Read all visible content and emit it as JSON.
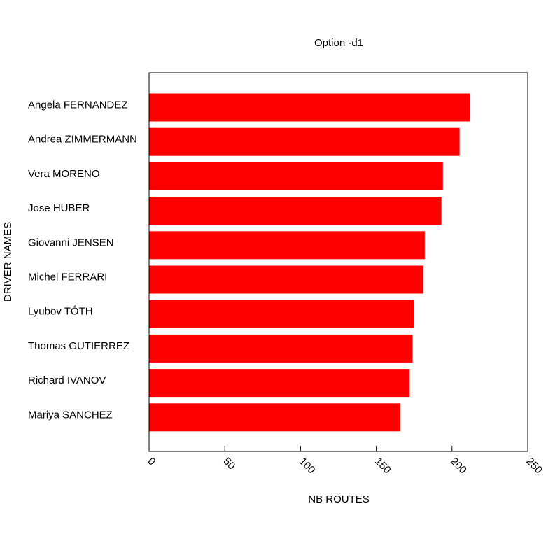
{
  "chart_data": {
    "type": "bar",
    "orientation": "horizontal",
    "title": "Option -d1",
    "xlabel": "NB ROUTES",
    "ylabel": "DRIVER NAMES",
    "categories": [
      "Angela FERNANDEZ",
      "Andrea ZIMMERMANN",
      "Vera MORENO",
      "Jose HUBER",
      "Giovanni JENSEN",
      "Michel FERRARI",
      "Lyubov TÓTH",
      "Thomas GUTIERREZ",
      "Richard IVANOV",
      "Mariya SANCHEZ"
    ],
    "values": [
      212,
      205,
      194,
      193,
      182,
      181,
      175,
      174,
      172,
      166
    ],
    "xlim": [
      0,
      250
    ],
    "xticks": [
      0,
      50,
      100,
      150,
      200,
      250
    ],
    "grid": false,
    "legend": "none",
    "bar_color": "#ff0000"
  }
}
